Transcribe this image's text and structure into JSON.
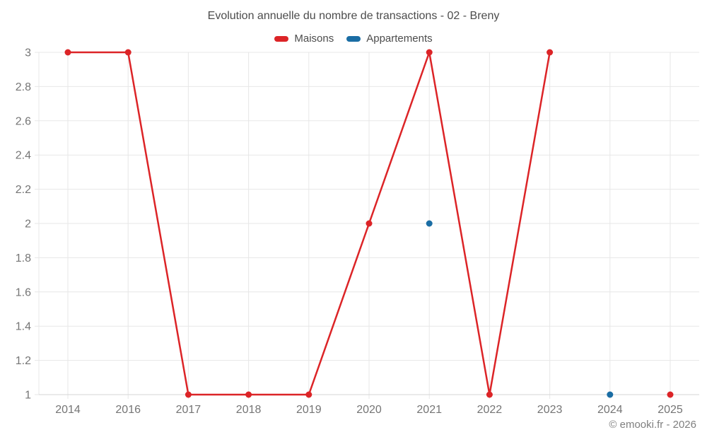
{
  "chart": {
    "title": "Evolution annuelle du nombre de transactions - 02 - Breny",
    "watermark": "© emooki.fr - 2026"
  },
  "chart_data": {
    "type": "line",
    "title": "Evolution annuelle du nombre de transactions - 02 - Breny",
    "categories": [
      "2014",
      "2016",
      "2017",
      "2018",
      "2019",
      "2020",
      "2021",
      "2022",
      "2023",
      "2024",
      "2025"
    ],
    "series": [
      {
        "name": "Maisons",
        "color": "#dc2427",
        "values": [
          3,
          3,
          1,
          1,
          1,
          2,
          3,
          1,
          3,
          null,
          1
        ]
      },
      {
        "name": "Appartements",
        "color": "#1a6da4",
        "values": [
          null,
          null,
          null,
          null,
          null,
          null,
          2,
          null,
          null,
          1,
          null
        ]
      }
    ],
    "xlabel": "",
    "ylabel": "",
    "ylim": [
      1,
      3
    ],
    "yticks": [
      1,
      1.2,
      1.4,
      1.6,
      1.8,
      2,
      2.2,
      2.4,
      2.6,
      2.8,
      3
    ],
    "grid": true,
    "legend_position": "top",
    "grid_color": "#e7e7e7",
    "axis_line_color": "#d6d6d6",
    "tick_label_color": "#757575"
  }
}
